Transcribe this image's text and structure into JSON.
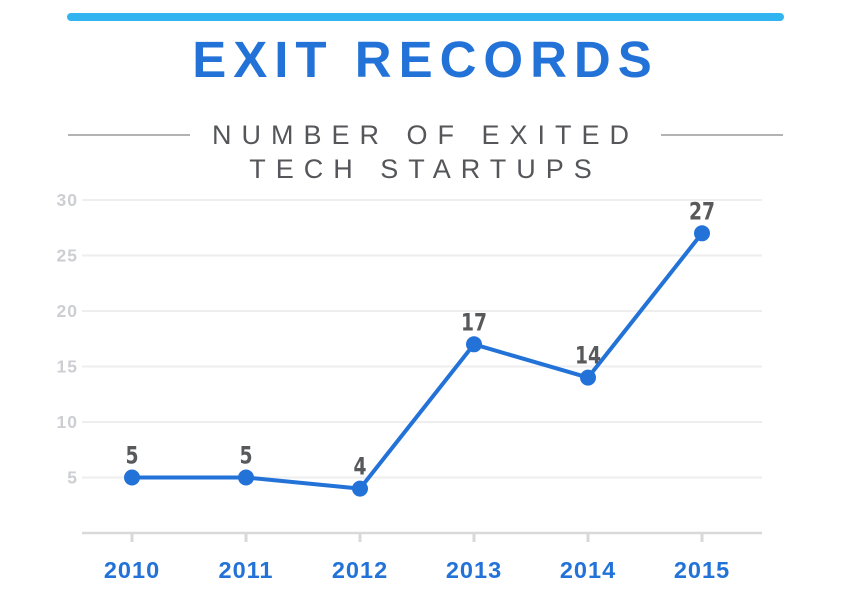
{
  "header": {
    "title": "EXIT RECORDS",
    "subtitle_line1": "NUMBER OF EXITED",
    "subtitle_line2": "TECH STARTUPS"
  },
  "colors": {
    "top_bar": "#31b4f0",
    "brand_blue": "#2272d8",
    "subtitle_gray": "#55565a",
    "rule_gray": "#b3b3b3",
    "data_label_gray": "#58595b",
    "y_tick_gray": "#cdced2",
    "gridline_gray": "#eeeeef",
    "axis_gray": "#d9d9da"
  },
  "chart_data": {
    "type": "line",
    "title": "EXIT RECORDS",
    "subtitle": "NUMBER OF EXITED TECH STARTUPS",
    "categories": [
      "2010",
      "2011",
      "2012",
      "2013",
      "2014",
      "2015"
    ],
    "values": [
      5,
      5,
      4,
      17,
      14,
      27
    ],
    "data_labels": [
      "5",
      "5",
      "4",
      "17",
      "14",
      "27"
    ],
    "xlabel": "",
    "ylabel": "",
    "ylim": [
      0,
      30
    ],
    "yticks": [
      5,
      10,
      15,
      20,
      25,
      30
    ],
    "grid": "horizontal",
    "legend": "none",
    "data_labels_shown": true
  }
}
